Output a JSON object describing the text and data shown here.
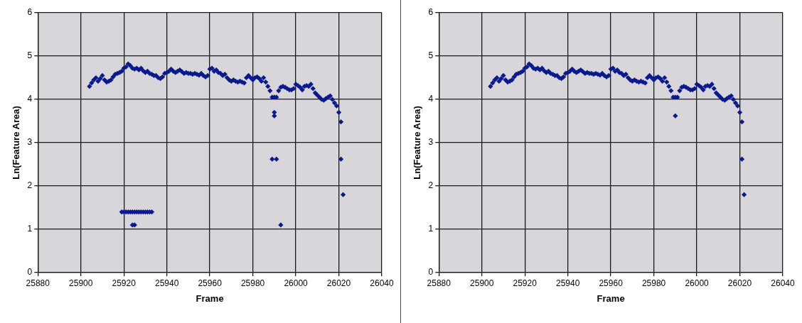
{
  "chart_data": [
    {
      "type": "scatter",
      "xlabel": "Frame",
      "ylabel": "Ln(Feature Area)",
      "xlim": [
        25880,
        26040
      ],
      "xticks": [
        25880,
        25900,
        25920,
        25940,
        25960,
        25980,
        26000,
        26020,
        26040
      ],
      "ylim": [
        0,
        6
      ],
      "yticks": [
        0,
        1,
        2,
        3,
        4,
        5,
        6
      ],
      "grid": true,
      "legend": false,
      "marker": "diamond",
      "series": [
        {
          "color": "#0a1a8c",
          "x": [
            25904,
            25905,
            25906,
            25907,
            25908,
            25909,
            25910,
            25911,
            25912,
            25913,
            25914,
            25915,
            25916,
            25917,
            25918,
            25919,
            25920,
            25921,
            25922,
            25923,
            25924,
            25925,
            25926,
            25927,
            25928,
            25929,
            25930,
            25931,
            25932,
            25933,
            25934,
            25935,
            25936,
            25937,
            25938,
            25939,
            25940,
            25941,
            25942,
            25943,
            25944,
            25945,
            25946,
            25947,
            25948,
            25949,
            25950,
            25951,
            25952,
            25953,
            25954,
            25955,
            25956,
            25957,
            25958,
            25959,
            25960,
            25961,
            25962,
            25963,
            25964,
            25965,
            25966,
            25967,
            25968,
            25969,
            25970,
            25971,
            25972,
            25973,
            25974,
            25975,
            25976,
            25977,
            25978,
            25979,
            25980,
            25981,
            25982,
            25983,
            25984,
            25985,
            25986,
            25987,
            25988,
            25989,
            25990,
            25991,
            25992,
            25993,
            25994,
            25995,
            25996,
            25997,
            25998,
            25999,
            26000,
            26001,
            26002,
            26003,
            26004,
            26005,
            26006,
            26007,
            26008,
            26009,
            26010,
            26011,
            26012,
            26013,
            26014,
            26015,
            26016,
            26017,
            26018,
            26019,
            26020,
            26021,
            26021,
            26022,
            25990,
            25990,
            25989,
            25991,
            25993,
            25919,
            25920,
            25921,
            25922,
            25923,
            25924,
            25925,
            25926,
            25927,
            25928,
            25929,
            25930,
            25931,
            25932,
            25933,
            25924,
            25925
          ],
          "values": [
            4.3,
            4.38,
            4.45,
            4.5,
            4.42,
            4.48,
            4.55,
            4.45,
            4.4,
            4.42,
            4.45,
            4.52,
            4.58,
            4.6,
            4.62,
            4.65,
            4.72,
            4.75,
            4.82,
            4.78,
            4.72,
            4.7,
            4.72,
            4.68,
            4.72,
            4.66,
            4.62,
            4.65,
            4.6,
            4.58,
            4.55,
            4.55,
            4.5,
            4.48,
            4.52,
            4.6,
            4.62,
            4.65,
            4.7,
            4.65,
            4.62,
            4.65,
            4.68,
            4.64,
            4.6,
            4.62,
            4.6,
            4.6,
            4.58,
            4.6,
            4.58,
            4.56,
            4.6,
            4.55,
            4.52,
            4.55,
            4.7,
            4.72,
            4.65,
            4.68,
            4.62,
            4.6,
            4.55,
            4.58,
            4.5,
            4.45,
            4.42,
            4.45,
            4.42,
            4.4,
            4.42,
            4.4,
            4.38,
            4.5,
            4.55,
            4.5,
            4.45,
            4.5,
            4.52,
            4.48,
            4.42,
            4.5,
            4.4,
            4.3,
            4.2,
            4.05,
            4.05,
            4.05,
            4.2,
            4.28,
            4.3,
            4.28,
            4.25,
            4.22,
            4.22,
            4.25,
            4.35,
            4.32,
            4.28,
            4.22,
            4.3,
            4.32,
            4.3,
            4.35,
            4.25,
            4.15,
            4.1,
            4.05,
            4.0,
            3.98,
            4.02,
            4.05,
            4.08,
            4.0,
            3.92,
            3.85,
            3.7,
            3.48,
            2.62,
            1.8,
            3.62,
            3.7,
            2.62,
            2.62,
            1.1,
            1.4,
            1.4,
            1.4,
            1.4,
            1.4,
            1.4,
            1.4,
            1.4,
            1.4,
            1.4,
            1.4,
            1.4,
            1.4,
            1.4,
            1.4,
            1.1,
            1.1
          ]
        }
      ]
    },
    {
      "type": "scatter",
      "xlabel": "Frame",
      "ylabel": "Ln(Feature Area)",
      "xlim": [
        25880,
        26040
      ],
      "xticks": [
        25880,
        25900,
        25920,
        25940,
        25960,
        25980,
        26000,
        26020,
        26040
      ],
      "ylim": [
        0,
        6
      ],
      "yticks": [
        0,
        1,
        2,
        3,
        4,
        5,
        6
      ],
      "grid": true,
      "legend": false,
      "marker": "diamond",
      "series": [
        {
          "color": "#0a1a8c",
          "x": [
            25904,
            25905,
            25906,
            25907,
            25908,
            25909,
            25910,
            25911,
            25912,
            25913,
            25914,
            25915,
            25916,
            25917,
            25918,
            25919,
            25920,
            25921,
            25922,
            25923,
            25924,
            25925,
            25926,
            25927,
            25928,
            25929,
            25930,
            25931,
            25932,
            25933,
            25934,
            25935,
            25936,
            25937,
            25938,
            25939,
            25940,
            25941,
            25942,
            25943,
            25944,
            25945,
            25946,
            25947,
            25948,
            25949,
            25950,
            25951,
            25952,
            25953,
            25954,
            25955,
            25956,
            25957,
            25958,
            25959,
            25960,
            25961,
            25962,
            25963,
            25964,
            25965,
            25966,
            25967,
            25968,
            25969,
            25970,
            25971,
            25972,
            25973,
            25974,
            25975,
            25976,
            25977,
            25978,
            25979,
            25980,
            25981,
            25982,
            25983,
            25984,
            25985,
            25986,
            25987,
            25988,
            25989,
            25990,
            25991,
            25992,
            25993,
            25994,
            25995,
            25996,
            25997,
            25998,
            25999,
            26000,
            26001,
            26002,
            26003,
            26004,
            26005,
            26006,
            26007,
            26008,
            26009,
            26010,
            26011,
            26012,
            26013,
            26014,
            26015,
            26016,
            26017,
            26018,
            26019,
            26020,
            26021,
            26021,
            26022,
            25990
          ],
          "values": [
            4.3,
            4.38,
            4.45,
            4.5,
            4.42,
            4.48,
            4.55,
            4.45,
            4.4,
            4.42,
            4.45,
            4.52,
            4.58,
            4.6,
            4.62,
            4.65,
            4.72,
            4.75,
            4.82,
            4.78,
            4.72,
            4.7,
            4.72,
            4.68,
            4.72,
            4.66,
            4.62,
            4.65,
            4.6,
            4.58,
            4.55,
            4.55,
            4.5,
            4.48,
            4.52,
            4.6,
            4.62,
            4.65,
            4.7,
            4.65,
            4.62,
            4.65,
            4.68,
            4.64,
            4.6,
            4.62,
            4.6,
            4.6,
            4.58,
            4.6,
            4.58,
            4.56,
            4.6,
            4.55,
            4.52,
            4.55,
            4.7,
            4.72,
            4.65,
            4.68,
            4.62,
            4.6,
            4.55,
            4.58,
            4.5,
            4.45,
            4.42,
            4.45,
            4.42,
            4.4,
            4.42,
            4.4,
            4.38,
            4.5,
            4.55,
            4.5,
            4.45,
            4.5,
            4.52,
            4.48,
            4.42,
            4.5,
            4.4,
            4.3,
            4.2,
            4.05,
            4.05,
            4.05,
            4.2,
            4.28,
            4.3,
            4.28,
            4.25,
            4.22,
            4.22,
            4.25,
            4.35,
            4.32,
            4.28,
            4.22,
            4.3,
            4.32,
            4.3,
            4.35,
            4.25,
            4.15,
            4.1,
            4.05,
            4.0,
            3.98,
            4.02,
            4.05,
            4.08,
            4.0,
            3.92,
            3.85,
            3.7,
            3.48,
            2.62,
            1.8,
            3.62
          ]
        }
      ]
    }
  ]
}
